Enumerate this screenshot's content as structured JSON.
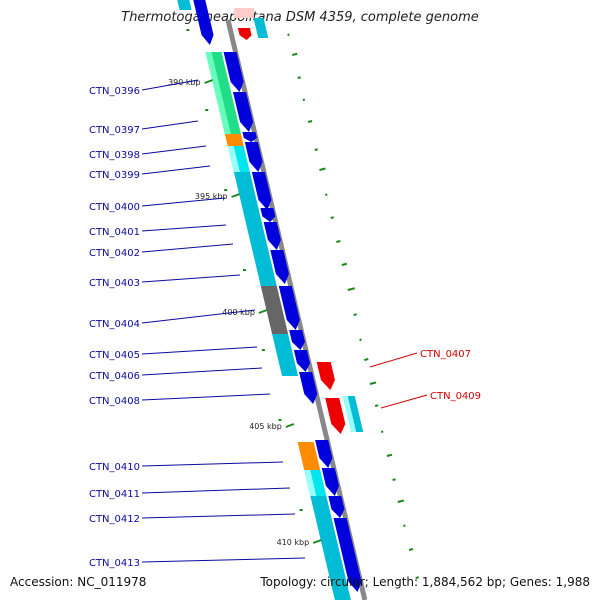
{
  "title": "Thermotoga neapolitana DSM 4359, complete genome",
  "accession": "Accession: NC_011978",
  "topology": "Topology: circular; Length: 1,884,562 bp; Genes: 1,988",
  "colors": {
    "backbone": "#888888",
    "cds_forward": "#0000dd",
    "cds_reverse": "#ee0000",
    "cog_cyan": "#00bcd4",
    "cog_light_cyan": "#00e5ee",
    "cog_green": "#22dd88",
    "cog_orange": "#ff8c00",
    "cog_gray": "#666666",
    "label_forward": "#0a0aa0",
    "label_reverse": "#d40000",
    "tick": "#1a8a1a"
  },
  "ticks": [
    {
      "label": "390 kbp"
    },
    {
      "label": "395 kbp"
    },
    {
      "label": "400 kbp"
    },
    {
      "label": "405 kbp"
    },
    {
      "label": "410 kbp"
    }
  ],
  "genes": [
    {
      "label": "CTN_0396",
      "strand": "forward"
    },
    {
      "label": "CTN_0397",
      "strand": "forward"
    },
    {
      "label": "CTN_0398",
      "strand": "forward"
    },
    {
      "label": "CTN_0399",
      "strand": "forward"
    },
    {
      "label": "CTN_0400",
      "strand": "forward"
    },
    {
      "label": "CTN_0401",
      "strand": "forward"
    },
    {
      "label": "CTN_0402",
      "strand": "forward"
    },
    {
      "label": "CTN_0403",
      "strand": "forward"
    },
    {
      "label": "CTN_0404",
      "strand": "forward"
    },
    {
      "label": "CTN_0405",
      "strand": "forward"
    },
    {
      "label": "CTN_0406",
      "strand": "forward"
    },
    {
      "label": "CTN_0408",
      "strand": "forward"
    },
    {
      "label": "CTN_0410",
      "strand": "forward"
    },
    {
      "label": "CTN_0411",
      "strand": "forward"
    },
    {
      "label": "CTN_0412",
      "strand": "forward"
    },
    {
      "label": "CTN_0413",
      "strand": "forward"
    },
    {
      "label": "CTN_0407",
      "strand": "reverse"
    },
    {
      "label": "CTN_0409",
      "strand": "reverse"
    }
  ]
}
